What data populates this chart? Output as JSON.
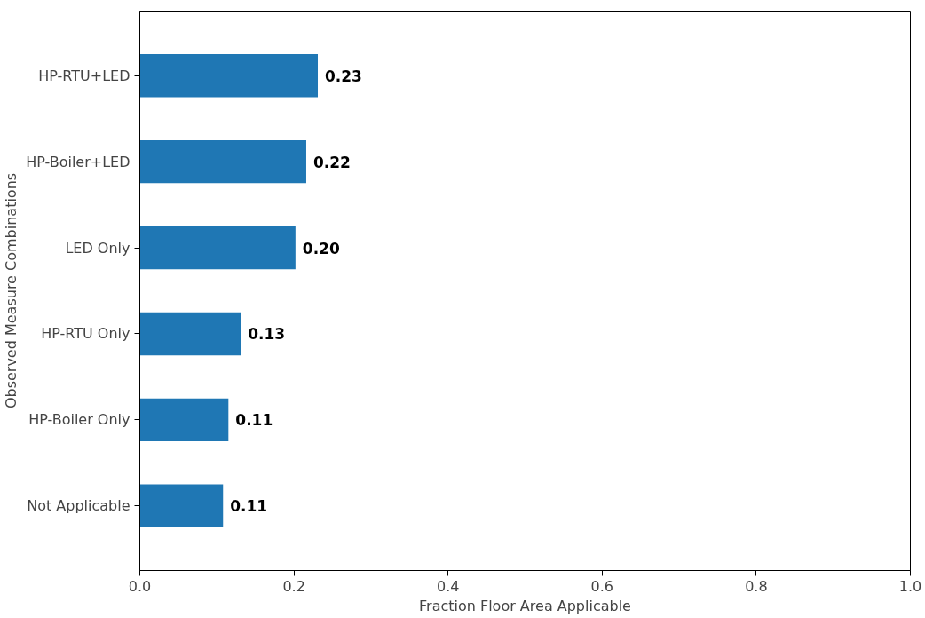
{
  "chart_data": {
    "type": "bar",
    "orientation": "horizontal",
    "xlabel": "Fraction Floor Area Applicable",
    "ylabel": "Observed Measure Combinations",
    "categories": [
      "HP-RTU+LED",
      "HP-Boiler+LED",
      "LED Only",
      "HP-RTU Only",
      "HP-Boiler Only",
      "Not Applicable"
    ],
    "values": [
      0.231,
      0.216,
      0.202,
      0.131,
      0.115,
      0.108
    ],
    "value_labels": [
      "0.23",
      "0.22",
      "0.20",
      "0.13",
      "0.11",
      "0.11"
    ],
    "color": "#1f77b4",
    "xlim": [
      0,
      1
    ],
    "xticks": [
      {
        "value": 0,
        "label": "0.0"
      },
      {
        "value": 0.2,
        "label": "0.2"
      },
      {
        "value": 0.4,
        "label": "0.4"
      },
      {
        "value": 0.6,
        "label": "0.6"
      },
      {
        "value": 0.8,
        "label": "0.8"
      },
      {
        "value": 1,
        "label": "1.0"
      }
    ],
    "grid": false
  }
}
